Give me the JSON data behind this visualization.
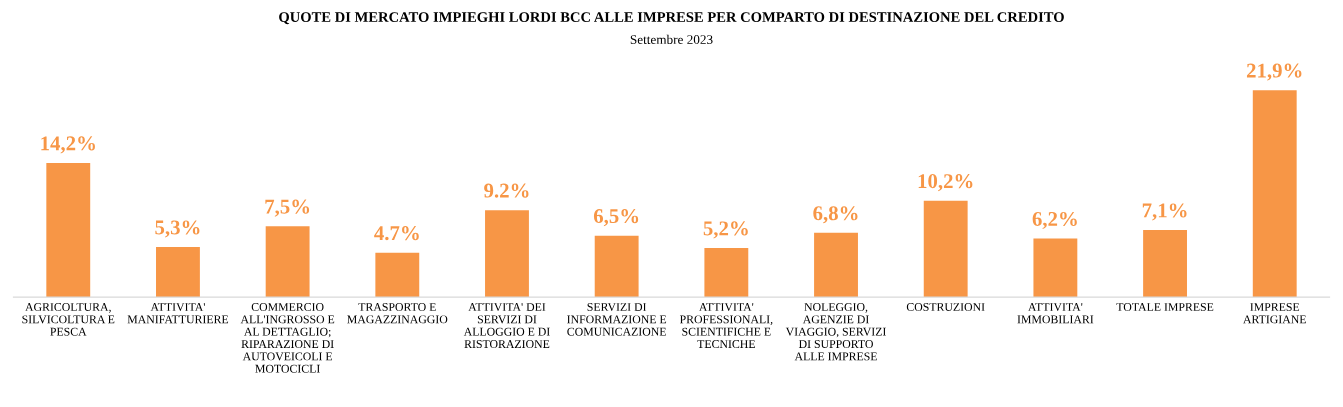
{
  "chart_data": {
    "type": "bar",
    "title": "QUOTE DI MERCATO IMPIEGHI LORDI BCC ALLE IMPRESE PER COMPARTO DI DESTINAZIONE DEL CREDITO",
    "subtitle": "Settembre 2023",
    "categories": [
      "AGRICOLTURA,\nSILVICOLTURA E\nPESCA",
      "ATTIVITA'\nMANIFATTURIERE",
      "COMMERCIO\nALL'INGROSSO E\nAL DETTAGLIO;\nRIPARAZIONE DI\nAUTOVEICOLI E\nMOTOCICLI",
      "TRASPORTO E\nMAGAZZINAGGIO",
      "ATTIVITA' DEI\nSERVIZI DI\nALLOGGIO E DI\nRISTORAZIONE",
      "SERVIZI DI\nINFORMAZIONE E\nCOMUNICAZIONE",
      "ATTIVITA'\nPROFESSIONALI,\nSCIENTIFICHE E\nTECNICHE",
      "NOLEGGIO,\nAGENZIE DI\nVIAGGIO, SERVIZI\nDI SUPPORTO\nALLE IMPRESE",
      "COSTRUZIONI",
      "ATTIVITA'\nIMMOBILIARI",
      "TOTALE IMPRESE",
      "IMPRESE\nARTIGIANE"
    ],
    "values": [
      14.2,
      5.3,
      7.5,
      4.7,
      9.2,
      6.5,
      5.2,
      6.8,
      10.2,
      6.2,
      7.1,
      21.9
    ],
    "value_labels": [
      "14,2%",
      "5,3%",
      "7,5%",
      "4.7%",
      "9.2%",
      "6,5%",
      "5,2%",
      "6,8%",
      "10,2%",
      "6,2%",
      "7,1%",
      "21,9%"
    ],
    "color": "#f79646",
    "grid": false,
    "legend": false
  }
}
